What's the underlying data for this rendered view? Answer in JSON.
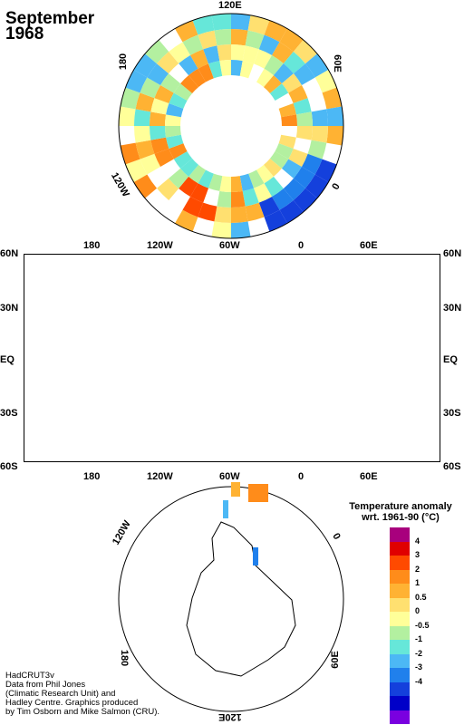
{
  "title_month": "September",
  "title_year": "1968",
  "north_labels": {
    "top": "120E",
    "right_upper": "60E",
    "right": "0",
    "left_upper": "180",
    "left_lower": "120W"
  },
  "south_labels": {
    "left_upper": "120W",
    "right_upper": "0",
    "left_lower": "180",
    "right_lower": "60E",
    "bottom": "120E"
  },
  "map_top_ticks": [
    "180",
    "120W",
    "60W",
    "0",
    "60E"
  ],
  "map_bottom_ticks": [
    "180",
    "120W",
    "60W",
    "0",
    "60E"
  ],
  "map_left_lat": [
    "60N",
    "30N",
    "EQ",
    "30S",
    "60S"
  ],
  "map_right_lat": [
    "60N",
    "30N",
    "EQ",
    "30S",
    "60S"
  ],
  "legend": {
    "title_line1": "Temperature anomaly",
    "title_line2": "wrt. 1961-90  (°C)",
    "colors": [
      "#a8007d",
      "#e00000",
      "#ff4a00",
      "#ff8c1a",
      "#ffb233",
      "#ffe070",
      "#ffff99",
      "#b3f0a0",
      "#66e7d9",
      "#4cb8f5",
      "#2080ec",
      "#1440dc",
      "#0000c8",
      "#7a00e0"
    ],
    "labels": [
      "4",
      "3",
      "2",
      "1",
      "0.5",
      "0",
      "-0.5",
      "-1",
      "-2",
      "-3",
      "-4"
    ]
  },
  "credits": [
    "HadCRUT3v",
    "Data from Phil Jones",
    "(Climatic Research Unit) and",
    "Hadley Centre.  Graphics produced",
    "by Tim Osborn and Mike Salmon (CRU)."
  ]
}
